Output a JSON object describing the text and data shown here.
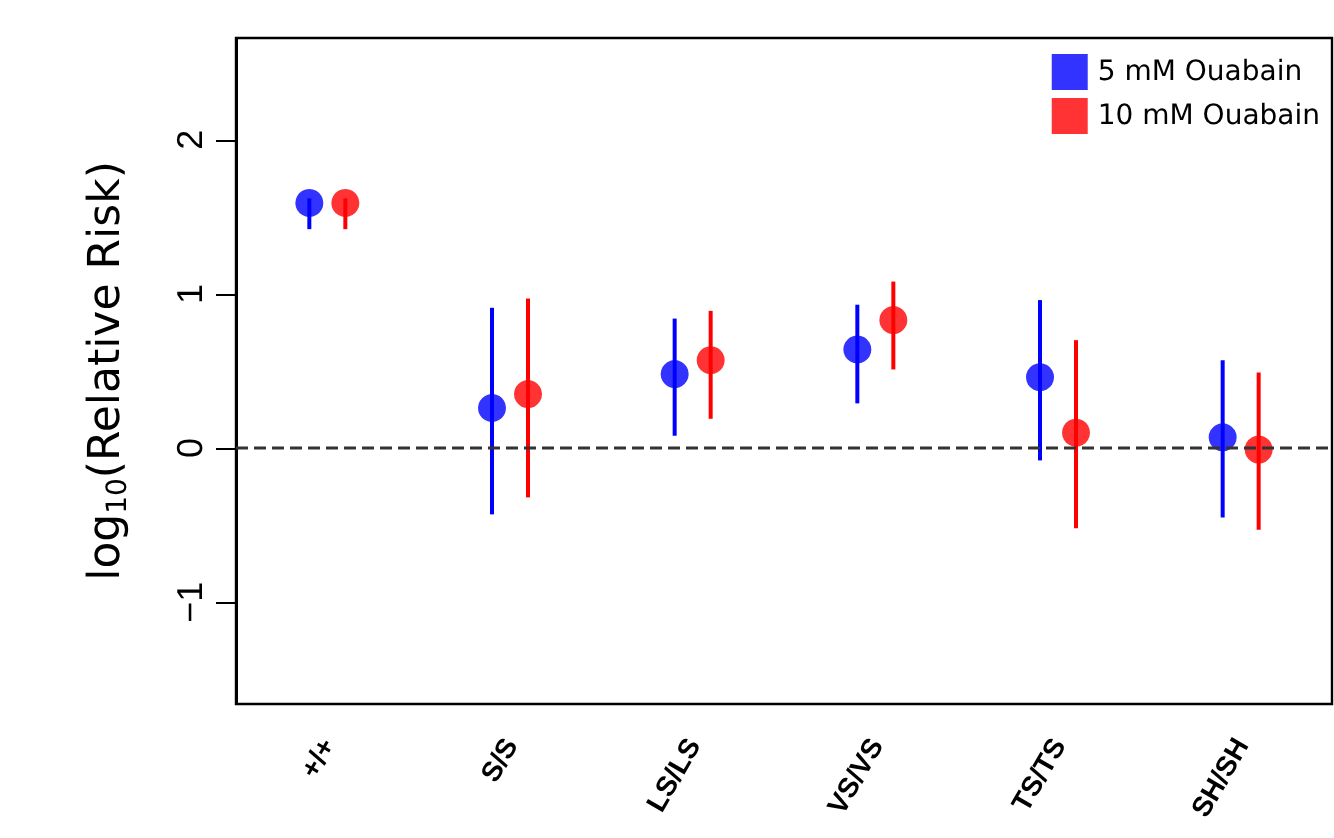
{
  "chart_data": {
    "type": "scatter",
    "ylabel": "log$_{10}$(Relative Risk)",
    "categories": [
      "+/+",
      "S/S",
      "LS/LS",
      "VS/VS",
      "TS/TS",
      "SH/SH"
    ],
    "series": [
      {
        "name": "5 mM Ouabain",
        "color": "#0000ff",
        "values": [
          1.59,
          0.26,
          0.48,
          0.64,
          0.46,
          0.07
        ],
        "errors": [
          [
            1.42,
            1.62
          ],
          [
            -0.43,
            0.91
          ],
          [
            0.08,
            0.84
          ],
          [
            0.29,
            0.93
          ],
          [
            -0.08,
            0.96
          ],
          [
            -0.45,
            0.57
          ]
        ]
      },
      {
        "name": "10 mM Ouabain",
        "color": "#ff0000",
        "values": [
          1.59,
          0.35,
          0.57,
          0.83,
          0.1,
          -0.01
        ],
        "errors": [
          [
            1.42,
            1.62
          ],
          [
            -0.32,
            0.97
          ],
          [
            0.19,
            0.89
          ],
          [
            0.51,
            1.08
          ],
          [
            -0.52,
            0.7
          ],
          [
            -0.53,
            0.49
          ]
        ]
      }
    ],
    "ylim": [
      -1.66,
      2.66
    ],
    "yticks": [
      -1,
      0,
      1,
      2
    ],
    "grid": false,
    "legend": "top right",
    "marker": "circle",
    "ref_lines": [
      {
        "axis": "y",
        "value": 0,
        "line_style": "dashed",
        "color": "#333333"
      }
    ]
  }
}
